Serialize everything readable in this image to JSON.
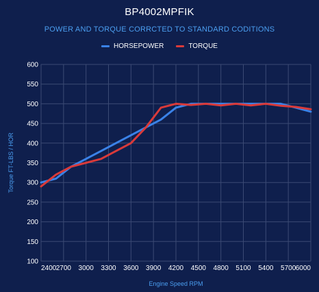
{
  "colors": {
    "background": "#0f1f4d",
    "grid": "#3b4a74",
    "horsepower": "#3a82e8",
    "torque": "#d93a3a",
    "accent_text": "#4b9ef0"
  },
  "chart_data": {
    "type": "line",
    "title": "BP4002MPFIK",
    "subtitle": "POWER AND TORQUE CORRCTED TO STANDARD CODITIONS",
    "xlabel": "Engine Speed RPM",
    "ylabel": "Torque FT-LBS / HOR",
    "x": [
      2400,
      2600,
      2800,
      3000,
      3200,
      3400,
      3600,
      3800,
      4000,
      4200,
      4400,
      4600,
      4800,
      5000,
      5200,
      5400,
      5600,
      5800,
      6000
    ],
    "x_ticks": [
      "2400",
      "2700",
      "3000",
      "3300",
      "3600",
      "3900",
      "4200",
      "4500",
      "4800",
      "5100",
      "5400",
      "5700",
      "6000"
    ],
    "y_ticks": [
      "100",
      "150",
      "200",
      "250",
      "300",
      "350",
      "400",
      "450",
      "500",
      "550",
      "600"
    ],
    "xlim": [
      2400,
      6000
    ],
    "ylim": [
      100,
      600
    ],
    "grid": true,
    "legend_position": "top-center",
    "series": [
      {
        "name": "HORSEPOWER",
        "values": [
          300,
          310,
          340,
          360,
          380,
          400,
          420,
          440,
          460,
          490,
          500,
          500,
          500,
          500,
          500,
          500,
          500,
          490,
          480
        ]
      },
      {
        "name": "TORQUE",
        "values": [
          290,
          320,
          340,
          350,
          360,
          380,
          400,
          440,
          490,
          500,
          497,
          500,
          496,
          500,
          496,
          500,
          495,
          492,
          486
        ]
      }
    ]
  }
}
